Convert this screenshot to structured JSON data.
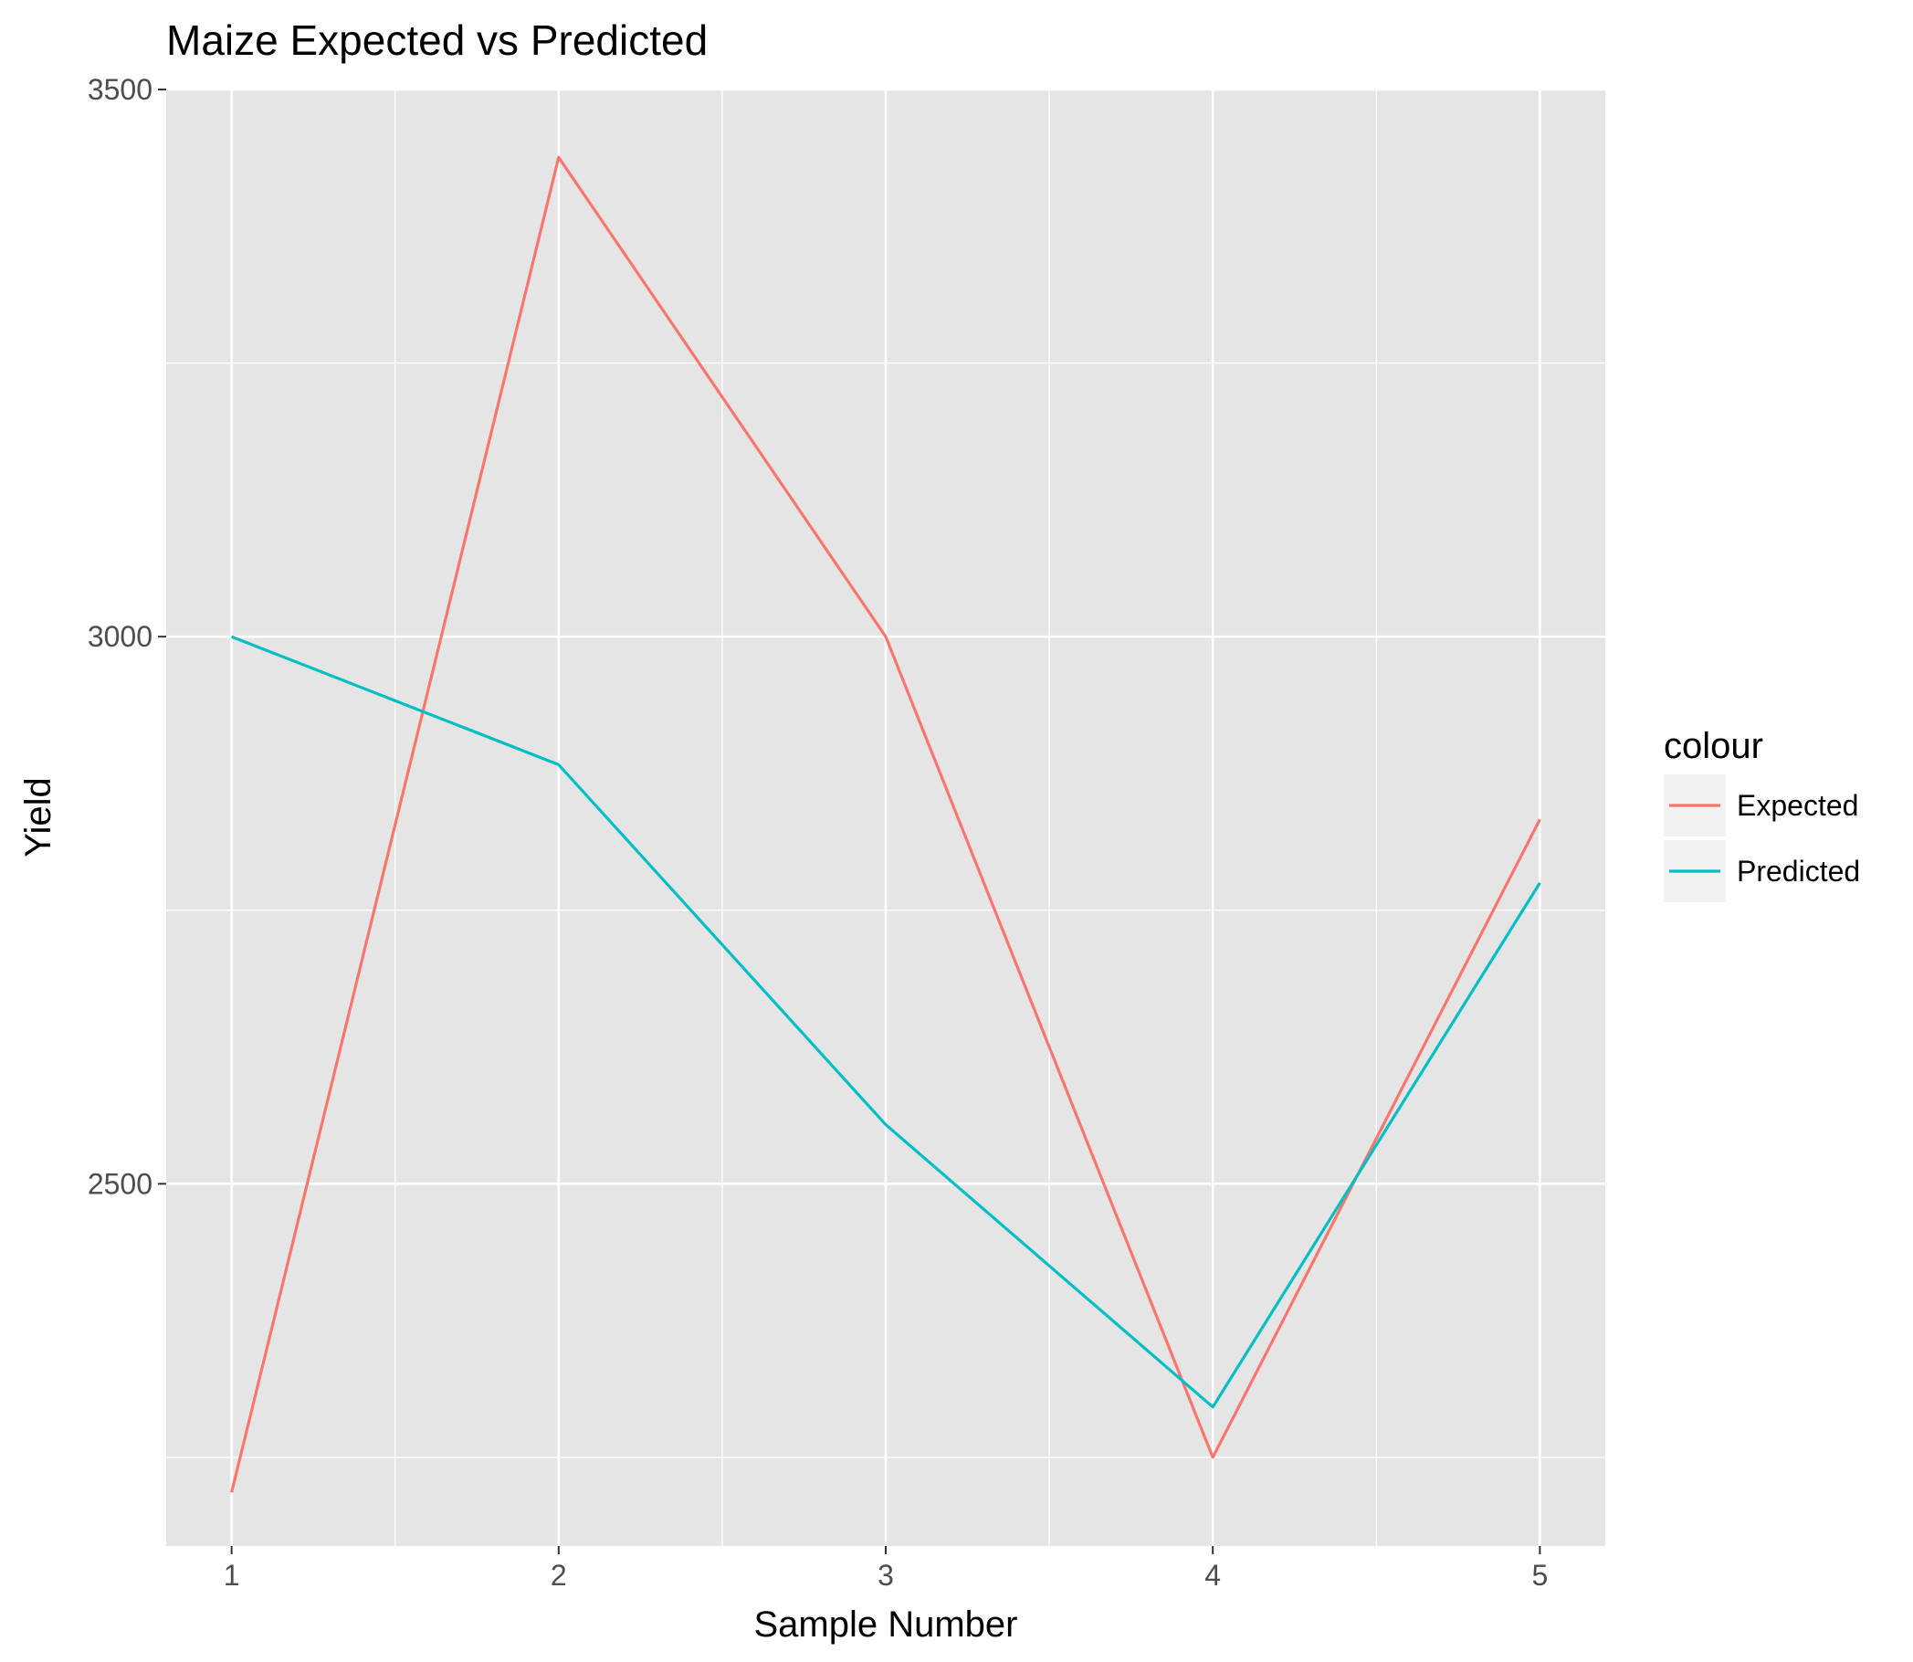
{
  "chart_data": {
    "type": "line",
    "title": "Maize Expected vs Predicted",
    "xlabel": "Sample Number",
    "ylabel": "Yield",
    "x": [
      1,
      2,
      3,
      4,
      5
    ],
    "x_tick_labels": [
      "1",
      "2",
      "3",
      "4",
      "5"
    ],
    "y_tick_labels": [
      "2500",
      "3000",
      "3500"
    ],
    "y_ticks": [
      2500,
      3000,
      3500
    ],
    "xlim": [
      0.8,
      5.2
    ],
    "ylim": [
      2169,
      3500
    ],
    "series": [
      {
        "name": "Expected",
        "color": "#F8766D",
        "values": [
          2218,
          3438,
          3000,
          2250,
          2833
        ]
      },
      {
        "name": "Predicted",
        "color": "#00BFC4",
        "values": [
          3000,
          2883,
          2554,
          2296,
          2775
        ]
      }
    ],
    "legend": {
      "title": "colour",
      "position": "right"
    },
    "grid": true,
    "panel_background": "#E5E5E5",
    "grid_color": "#FFFFFF"
  }
}
